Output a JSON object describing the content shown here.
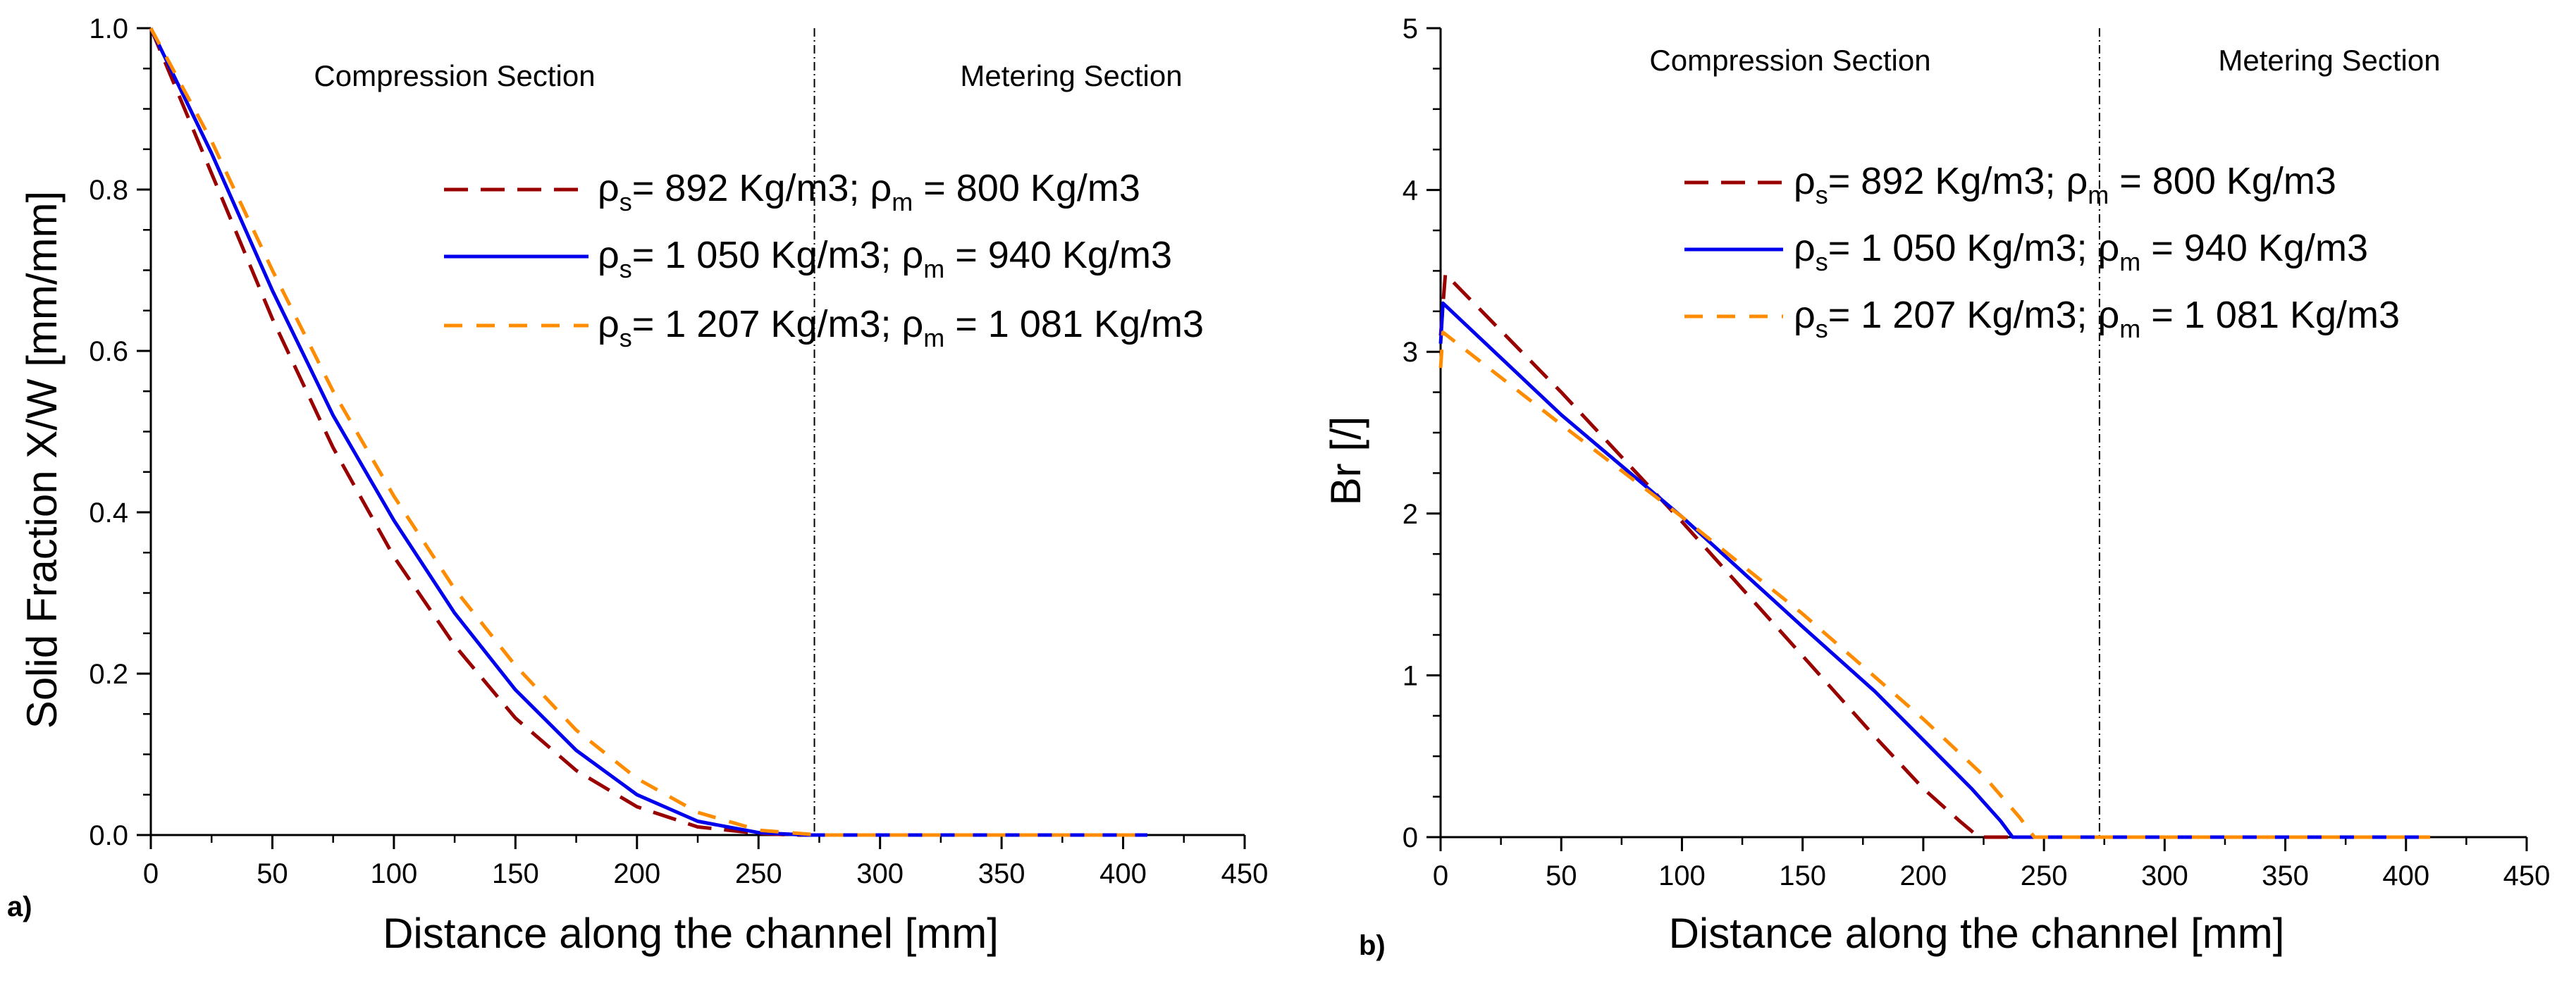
{
  "chart_data": [
    {
      "type": "line",
      "panel_label": "a)",
      "xlabel": "Distance along the channel [mm]",
      "ylabel": "Solid Fraction X/W [mm/mm]",
      "xlim": [
        0,
        450
      ],
      "ylim": [
        0,
        1.0
      ],
      "x_ticks": [
        0,
        50,
        100,
        150,
        200,
        250,
        300,
        350,
        400,
        450
      ],
      "y_ticks": [
        0.0,
        0.2,
        0.4,
        0.6,
        0.8,
        1.0
      ],
      "x_tick_labels": [
        "0",
        "50",
        "100",
        "150",
        "200",
        "250",
        "300",
        "350",
        "400",
        "450"
      ],
      "y_tick_labels": [
        "0.0",
        "0.2",
        "0.4",
        "0.6",
        "0.8",
        "1.0"
      ],
      "section_divider_x": 273,
      "sections": [
        "Compression Section",
        "Metering Section"
      ],
      "legend_position": "top-right",
      "series": [
        {
          "rho_s": "892",
          "rho_m": "800",
          "unit": "Kg/m3",
          "color": "#990000",
          "dash": "long-dash",
          "x": [
            0,
            25,
            50,
            75,
            100,
            125,
            150,
            175,
            200,
            225,
            250,
            265,
            410
          ],
          "y": [
            1.0,
            0.82,
            0.64,
            0.48,
            0.345,
            0.235,
            0.145,
            0.08,
            0.035,
            0.01,
            0.002,
            0.0,
            0.0
          ]
        },
        {
          "rho_s": "1 050",
          "rho_m": "940",
          "unit": "Kg/m3",
          "color": "#0000ee",
          "dash": "solid",
          "x": [
            0,
            25,
            50,
            75,
            100,
            125,
            150,
            175,
            200,
            225,
            250,
            270,
            410
          ],
          "y": [
            1.0,
            0.845,
            0.675,
            0.52,
            0.39,
            0.275,
            0.18,
            0.105,
            0.05,
            0.017,
            0.003,
            0.0,
            0.0
          ]
        },
        {
          "rho_s": "1 207",
          "rho_m": "1 081",
          "unit": "Kg/m3",
          "color": "#ff8c00",
          "dash": "short-dash",
          "x": [
            0,
            25,
            50,
            75,
            100,
            125,
            150,
            175,
            200,
            225,
            250,
            275,
            410
          ],
          "y": [
            1.0,
            0.86,
            0.7,
            0.55,
            0.42,
            0.305,
            0.21,
            0.13,
            0.07,
            0.028,
            0.006,
            0.0,
            0.0
          ]
        }
      ]
    },
    {
      "type": "line",
      "panel_label": "b)",
      "xlabel": "Distance along the channel [mm]",
      "ylabel": "Br [/]",
      "xlim": [
        0,
        450
      ],
      "ylim": [
        0,
        5
      ],
      "x_ticks": [
        0,
        50,
        100,
        150,
        200,
        250,
        300,
        350,
        400,
        450
      ],
      "y_ticks": [
        0,
        1,
        2,
        3,
        4,
        5
      ],
      "x_tick_labels": [
        "0",
        "50",
        "100",
        "150",
        "200",
        "250",
        "300",
        "350",
        "400",
        "450"
      ],
      "y_tick_labels": [
        "0",
        "1",
        "2",
        "3",
        "4",
        "5"
      ],
      "section_divider_x": 273,
      "sections": [
        "Compression Section",
        "Metering Section"
      ],
      "legend_position": "top-right",
      "series": [
        {
          "rho_s": "892",
          "rho_m": "800",
          "unit": "Kg/m3",
          "color": "#990000",
          "dash": "long-dash",
          "x": [
            0,
            2,
            50,
            100,
            150,
            180,
            200,
            215,
            223,
            410
          ],
          "y": [
            3.1,
            3.48,
            2.75,
            1.95,
            1.12,
            0.62,
            0.3,
            0.1,
            0.0,
            0.0
          ]
        },
        {
          "rho_s": "1 050",
          "rho_m": "940",
          "unit": "Kg/m3",
          "color": "#0000ee",
          "dash": "solid",
          "x": [
            0,
            1,
            50,
            100,
            150,
            180,
            200,
            220,
            232,
            237,
            410
          ],
          "y": [
            3.05,
            3.3,
            2.61,
            1.98,
            1.3,
            0.9,
            0.6,
            0.3,
            0.1,
            0.0,
            0.0
          ]
        },
        {
          "rho_s": "1 207",
          "rho_m": "1 081",
          "unit": "Kg/m3",
          "color": "#ff8c00",
          "dash": "short-dash",
          "x": [
            0,
            1,
            50,
            100,
            150,
            200,
            225,
            240,
            246,
            410
          ],
          "y": [
            2.9,
            3.12,
            2.55,
            1.98,
            1.38,
            0.73,
            0.38,
            0.12,
            0.0,
            0.0
          ]
        }
      ]
    }
  ]
}
